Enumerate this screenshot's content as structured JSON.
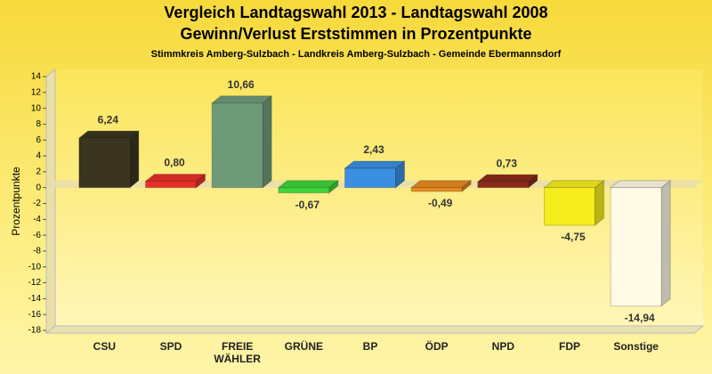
{
  "chart_data": {
    "type": "bar",
    "title_lines": [
      "Vergleich Landtagswahl 2013 - Landtagswahl 2008",
      "Gewinn/Verlust Erststimmen in Prozentpunkte"
    ],
    "subtitle": "Stimmkreis Amberg-Sulzbach - Landkreis Amberg-Sulzbach - Gemeinde Ebermannsdorf",
    "ylabel": "Prozentpunkte",
    "categories": [
      "CSU",
      "SPD",
      "FREIE WÄHLER",
      "GRÜNE",
      "BP",
      "ÖDP",
      "NPD",
      "FDP",
      "Sonstige"
    ],
    "values": [
      6.24,
      0.8,
      10.66,
      -0.67,
      2.43,
      -0.49,
      0.73,
      -4.75,
      -14.94
    ],
    "value_labels": [
      "6,24",
      "0,80",
      "10,66",
      "-0,67",
      "2,43",
      "-0,49",
      "0,73",
      "-4,75",
      "-14,94"
    ],
    "colors": [
      "#3a3420",
      "#e8302a",
      "#6f9a7a",
      "#3fd43a",
      "#3a8fe0",
      "#e88a20",
      "#8a2a1a",
      "#f6ee1c",
      "#fffbe6"
    ],
    "ylim": [
      -18,
      14
    ],
    "yticks": [
      14,
      12,
      10,
      8,
      6,
      4,
      2,
      0,
      -2,
      -4,
      -6,
      -8,
      -10,
      -12,
      -14,
      -16,
      -18
    ]
  }
}
